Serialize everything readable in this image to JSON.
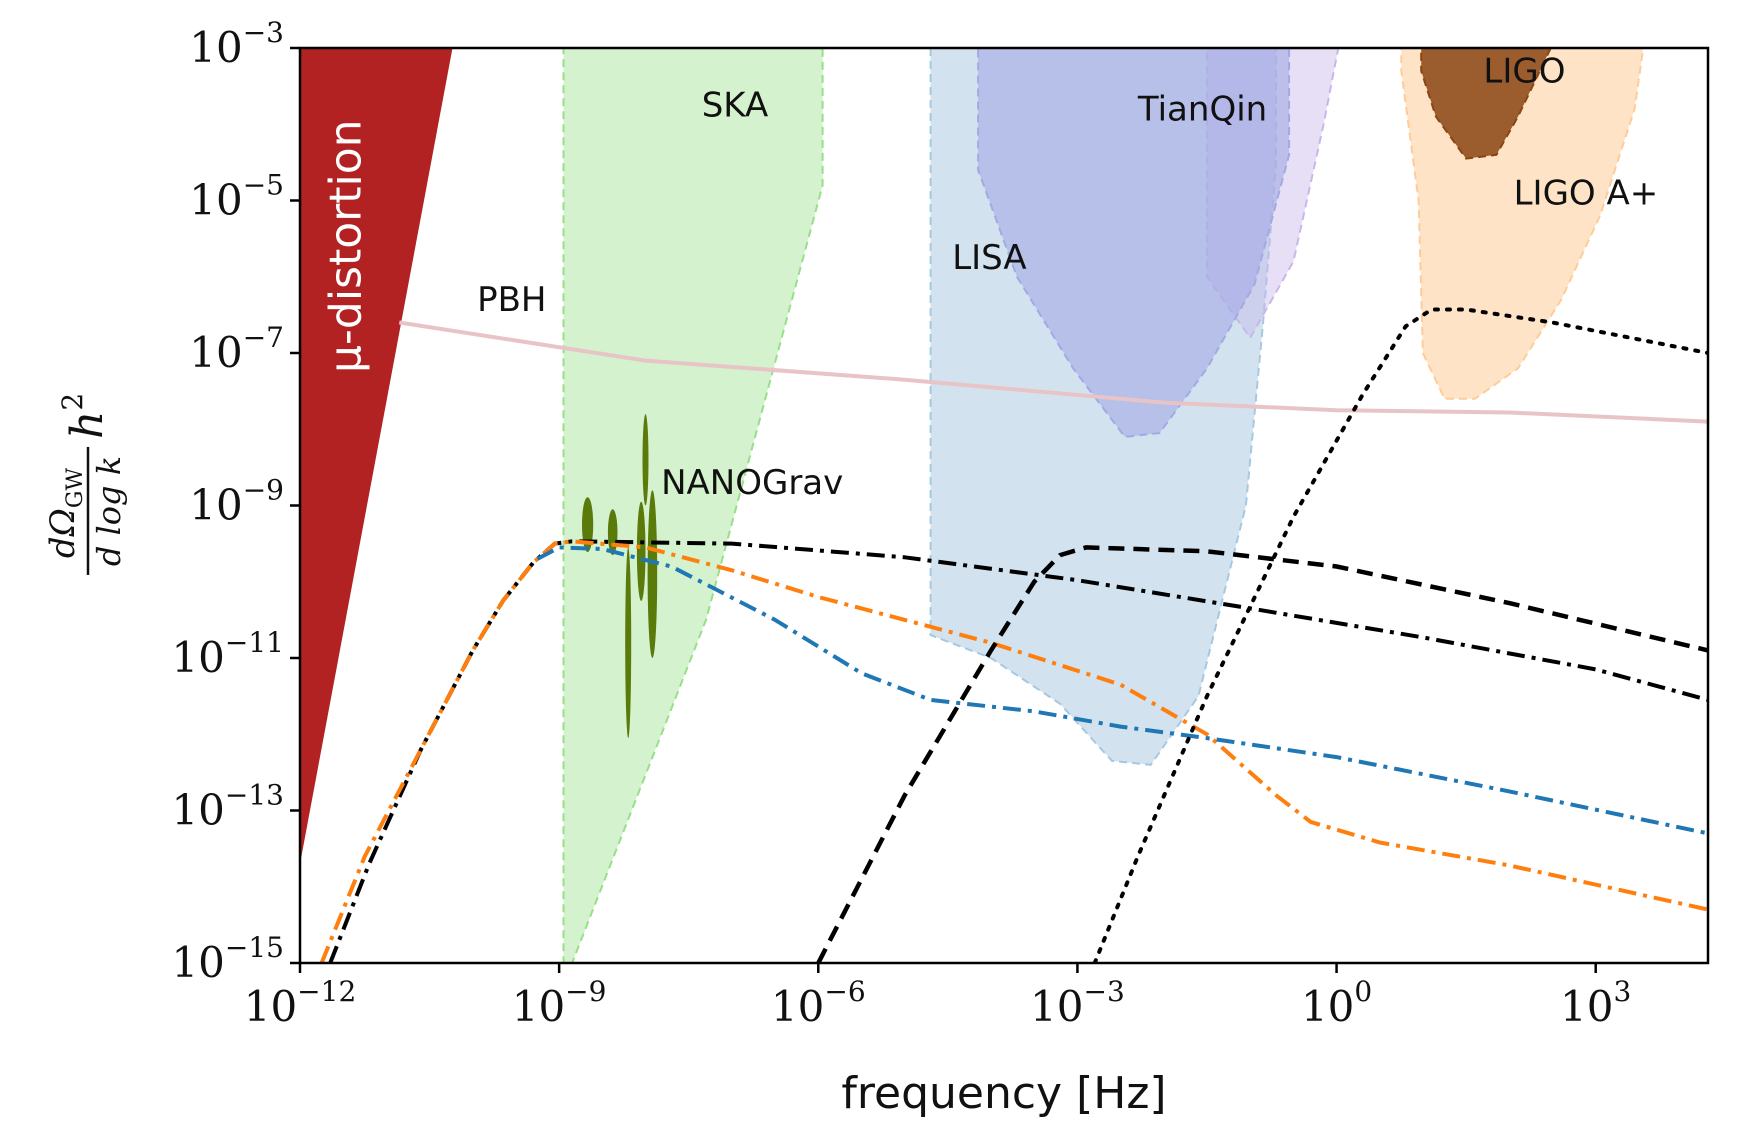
{
  "chart_data": {
    "type": "area",
    "xlabel": "frequency [Hz]",
    "ylabel": "dΩ_GW/dlog k h²",
    "ylabel_parts": {
      "num": "dΩ",
      "num_sub": "GW",
      "den": "d log k",
      "tail": "h",
      "tail_sup": "2"
    },
    "xscale": "log10",
    "yscale": "log10",
    "xlim_log10": [
      -12,
      4.3
    ],
    "ylim_log10": [
      -15,
      -3
    ],
    "x_ticks": [
      {
        "base": "10",
        "exp": "−12",
        "log10": -12
      },
      {
        "base": "10",
        "exp": "−9",
        "log10": -9
      },
      {
        "base": "10",
        "exp": "−6",
        "log10": -6
      },
      {
        "base": "10",
        "exp": "−3",
        "log10": -3
      },
      {
        "base": "10",
        "exp": "0",
        "log10": 0
      },
      {
        "base": "10",
        "exp": "3",
        "log10": 3
      }
    ],
    "y_ticks": [
      {
        "base": "10",
        "exp": "−3",
        "log10": -3
      },
      {
        "base": "10",
        "exp": "−5",
        "log10": -5
      },
      {
        "base": "10",
        "exp": "−7",
        "log10": -7
      },
      {
        "base": "10",
        "exp": "−9",
        "log10": -9
      },
      {
        "base": "10",
        "exp": "−11",
        "log10": -11
      },
      {
        "base": "10",
        "exp": "−13",
        "log10": -13
      },
      {
        "base": "10",
        "exp": "−15",
        "log10": -15
      }
    ],
    "regions": [
      {
        "name": "μ-distortion",
        "color": "#b22222",
        "opacity": 1.0,
        "points_log10": [
          [
            -12,
            -3
          ],
          [
            -10.235,
            -3
          ],
          [
            -12,
            -13.7
          ]
        ]
      },
      {
        "name": "SKA",
        "color": "#98df8a",
        "opacity": 0.42,
        "points_log10": [
          [
            -8.95,
            -3
          ],
          [
            -5.95,
            -3
          ],
          [
            -5.95,
            -4.8
          ],
          [
            -7.3,
            -10.5
          ],
          [
            -8.85,
            -15
          ],
          [
            -8.95,
            -15
          ]
        ]
      },
      {
        "name": "LISA",
        "color": "#a6c8e0",
        "opacity": 0.5,
        "points_log10": [
          [
            -4.7,
            -3
          ],
          [
            -4.7,
            -10.7
          ],
          [
            -4.0,
            -11.0
          ],
          [
            -3.2,
            -11.6
          ],
          [
            -2.6,
            -12.35
          ],
          [
            -2.15,
            -12.4
          ],
          [
            -1.6,
            -11.5
          ],
          [
            -1.05,
            -9.0
          ],
          [
            -0.85,
            -6.6
          ],
          [
            -0.7,
            -4.5
          ],
          [
            -0.7,
            -3
          ]
        ]
      },
      {
        "name": "TianQin-ext",
        "color": "#c8b8ea",
        "opacity": 0.45,
        "points_log10": [
          [
            -1.5,
            -3
          ],
          [
            0.02,
            -3
          ],
          [
            -0.15,
            -4.0
          ],
          [
            -0.5,
            -5.8
          ],
          [
            -1.0,
            -6.8
          ],
          [
            -1.5,
            -6.0
          ]
        ]
      },
      {
        "name": "TianQin",
        "color": "#a4a8e4",
        "opacity": 0.6,
        "points_log10": [
          [
            -4.15,
            -3
          ],
          [
            -0.55,
            -3
          ],
          [
            -0.55,
            -4.4
          ],
          [
            -0.95,
            -6.1
          ],
          [
            -1.5,
            -7.2
          ],
          [
            -2.05,
            -8.05
          ],
          [
            -2.45,
            -8.1
          ],
          [
            -3.05,
            -7.2
          ],
          [
            -3.7,
            -6.0
          ],
          [
            -4.15,
            -4.6
          ]
        ]
      },
      {
        "name": "LIGO A+",
        "color": "#ffcc99",
        "opacity": 0.55,
        "points_log10": [
          [
            0.75,
            -3
          ],
          [
            3.55,
            -3
          ],
          [
            3.45,
            -3.8
          ],
          [
            3.05,
            -5.2
          ],
          [
            2.6,
            -6.3
          ],
          [
            2.1,
            -7.2
          ],
          [
            1.6,
            -7.6
          ],
          [
            1.25,
            -7.6
          ],
          [
            1.0,
            -7.0
          ],
          [
            0.95,
            -5.0
          ],
          [
            0.75,
            -3.3
          ]
        ]
      },
      {
        "name": "LIGO",
        "color": "#8b4513",
        "opacity": 0.85,
        "points_log10": [
          [
            0.98,
            -3
          ],
          [
            2.48,
            -3
          ],
          [
            2.1,
            -3.9
          ],
          [
            1.85,
            -4.4
          ],
          [
            1.5,
            -4.45
          ],
          [
            1.15,
            -3.9
          ],
          [
            0.98,
            -3.3
          ]
        ]
      }
    ],
    "region_labels": [
      {
        "text": "SKA",
        "x_log10": -7.35,
        "y_log10": -3.9,
        "color": "#111111"
      },
      {
        "text": "TianQin",
        "x_log10": -2.3,
        "y_log10": -3.95,
        "color": "#111111"
      },
      {
        "text": "LISA",
        "x_log10": -4.45,
        "y_log10": -5.9,
        "color": "#111111"
      },
      {
        "text": "LIGO",
        "x_log10": 1.7,
        "y_log10": -3.45,
        "color": "#111111"
      },
      {
        "text": "LIGO A+",
        "x_log10": 2.05,
        "y_log10": -5.05,
        "color": "#111111"
      },
      {
        "text": "PBH",
        "x_log10": -9.95,
        "y_log10": -6.45,
        "color": "#111111"
      },
      {
        "text": "NANOGrav",
        "x_log10": -7.82,
        "y_log10": -8.85,
        "color": "#111111"
      },
      {
        "text": "μ-distortion",
        "x_log10": -11.3,
        "y_log10": -5.6,
        "color": "#ffffff",
        "rotate": -90
      }
    ],
    "nanograv": {
      "color": "#5a7a0a",
      "blobs_log10": [
        {
          "x": -8.67,
          "y": -9.25,
          "dx": 0.065,
          "dy": 0.36
        },
        {
          "x": -8.38,
          "y": -9.35,
          "dx": 0.055,
          "dy": 0.3
        },
        {
          "x": -8.2,
          "y": -10.8,
          "dx": 0.035,
          "dy": 1.25
        },
        {
          "x": -8.05,
          "y": -9.6,
          "dx": 0.05,
          "dy": 0.65
        },
        {
          "x": -7.92,
          "y": -9.9,
          "dx": 0.055,
          "dy": 1.1
        },
        {
          "x": -8.0,
          "y": -8.4,
          "dx": 0.035,
          "dy": 0.6
        }
      ]
    },
    "series": [
      {
        "name": "PBH",
        "color": "#e8c4c6",
        "style": "solid",
        "width": 4,
        "points_log10": [
          [
            -10.85,
            -6.6
          ],
          [
            -8,
            -7.1
          ],
          [
            -5,
            -7.35
          ],
          [
            -2,
            -7.65
          ],
          [
            0,
            -7.75
          ],
          [
            2,
            -7.78
          ],
          [
            4.3,
            -7.9
          ]
        ]
      },
      {
        "name": "black-dashdot",
        "color": "#000000",
        "style": "dashdot",
        "width": 4,
        "points_log10": [
          [
            -11.65,
            -15
          ],
          [
            -11.2,
            -13.7
          ],
          [
            -10.6,
            -12.2
          ],
          [
            -10.0,
            -10.9
          ],
          [
            -9.65,
            -10.25
          ],
          [
            -9.3,
            -9.75
          ],
          [
            -9.05,
            -9.5
          ],
          [
            -8.85,
            -9.47
          ],
          [
            -7.0,
            -9.5
          ],
          [
            -5.0,
            -9.68
          ],
          [
            -3.0,
            -9.98
          ],
          [
            -1.0,
            -10.35
          ],
          [
            1.0,
            -10.73
          ],
          [
            3.0,
            -11.15
          ],
          [
            4.3,
            -11.55
          ]
        ]
      },
      {
        "name": "orange-dashdot",
        "color": "#ff7f0e",
        "style": "dashdot",
        "width": 4,
        "points_log10": [
          [
            -11.75,
            -15
          ],
          [
            -11.25,
            -13.6
          ],
          [
            -10.6,
            -12.2
          ],
          [
            -10.0,
            -10.9
          ],
          [
            -9.65,
            -10.25
          ],
          [
            -9.3,
            -9.75
          ],
          [
            -9.05,
            -9.5
          ],
          [
            -8.85,
            -9.47
          ],
          [
            -8.0,
            -9.55
          ],
          [
            -7.0,
            -9.85
          ],
          [
            -6.0,
            -10.2
          ],
          [
            -4.0,
            -10.8
          ],
          [
            -2.5,
            -11.35
          ],
          [
            -1.5,
            -12.0
          ],
          [
            -0.7,
            -12.8
          ],
          [
            -0.3,
            -13.15
          ],
          [
            0.5,
            -13.42
          ],
          [
            2.0,
            -13.72
          ],
          [
            4.3,
            -14.3
          ]
        ]
      },
      {
        "name": "blue-dashdot",
        "color": "#1f77b4",
        "style": "dashdot",
        "width": 4,
        "points_log10": [
          [
            -9.25,
            -9.7
          ],
          [
            -9.0,
            -9.55
          ],
          [
            -8.5,
            -9.57
          ],
          [
            -7.7,
            -9.8
          ],
          [
            -6.5,
            -10.5
          ],
          [
            -5.5,
            -11.2
          ],
          [
            -4.7,
            -11.55
          ],
          [
            -3.5,
            -11.7
          ],
          [
            -2.5,
            -11.9
          ],
          [
            -1.5,
            -12.05
          ],
          [
            0.0,
            -12.3
          ],
          [
            2.0,
            -12.75
          ],
          [
            4.3,
            -13.3
          ]
        ]
      },
      {
        "name": "black-dashed",
        "color": "#000000",
        "style": "dashed",
        "width": 4.5,
        "points_log10": [
          [
            -6.0,
            -15
          ],
          [
            -5.5,
            -13.9
          ],
          [
            -5.0,
            -12.8
          ],
          [
            -4.5,
            -11.85
          ],
          [
            -4.0,
            -10.9
          ],
          [
            -3.5,
            -10.0
          ],
          [
            -3.2,
            -9.65
          ],
          [
            -2.9,
            -9.55
          ],
          [
            -1.5,
            -9.6
          ],
          [
            0.0,
            -9.8
          ],
          [
            2.0,
            -10.28
          ],
          [
            4.3,
            -10.9
          ]
        ]
      },
      {
        "name": "black-dotted",
        "color": "#000000",
        "style": "dotted",
        "width": 4,
        "points_log10": [
          [
            -2.8,
            -15
          ],
          [
            -2.3,
            -13.6
          ],
          [
            -1.5,
            -11.5
          ],
          [
            -0.5,
            -9.15
          ],
          [
            0.3,
            -7.55
          ],
          [
            0.8,
            -6.65
          ],
          [
            1.1,
            -6.43
          ],
          [
            1.5,
            -6.43
          ],
          [
            2.5,
            -6.6
          ],
          [
            4.3,
            -7.0
          ]
        ]
      }
    ]
  }
}
